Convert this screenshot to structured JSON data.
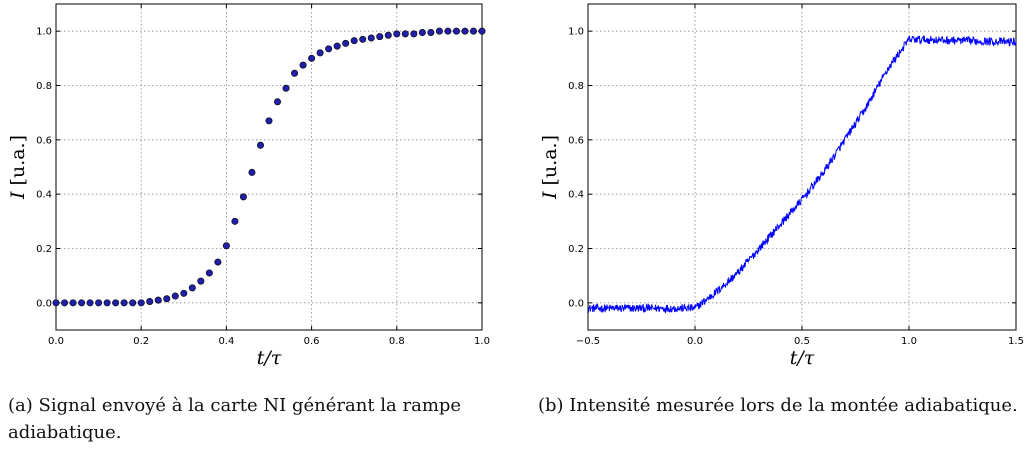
{
  "chart_data": [
    {
      "type": "scatter",
      "title": "",
      "xlabel": "t/τ",
      "ylabel": "I [u.a.]",
      "xlim": [
        0.0,
        1.0
      ],
      "ylim": [
        -0.1,
        1.1
      ],
      "xticks": [
        "0.0",
        "0.2",
        "0.4",
        "0.6",
        "0.8",
        "1.0"
      ],
      "yticks": [
        "0.0",
        "0.2",
        "0.4",
        "0.6",
        "0.8",
        "1.0"
      ],
      "grid": true,
      "marker_color": "#1f1fa8",
      "x": [
        0.0,
        0.02,
        0.04,
        0.06,
        0.08,
        0.1,
        0.12,
        0.14,
        0.16,
        0.18,
        0.2,
        0.22,
        0.24,
        0.26,
        0.28,
        0.3,
        0.32,
        0.34,
        0.36,
        0.38,
        0.4,
        0.42,
        0.44,
        0.46,
        0.48,
        0.5,
        0.52,
        0.54,
        0.56,
        0.58,
        0.6,
        0.62,
        0.64,
        0.66,
        0.68,
        0.7,
        0.72,
        0.74,
        0.76,
        0.78,
        0.8,
        0.82,
        0.84,
        0.86,
        0.88,
        0.9,
        0.92,
        0.94,
        0.96,
        0.98,
        1.0
      ],
      "y": [
        0.0,
        0.0,
        0.0,
        0.0,
        0.0,
        0.0,
        0.0,
        0.0,
        0.0,
        0.0,
        0.0,
        0.005,
        0.01,
        0.015,
        0.025,
        0.035,
        0.055,
        0.08,
        0.11,
        0.15,
        0.21,
        0.3,
        0.39,
        0.48,
        0.58,
        0.67,
        0.74,
        0.79,
        0.845,
        0.875,
        0.9,
        0.92,
        0.935,
        0.945,
        0.955,
        0.965,
        0.97,
        0.975,
        0.98,
        0.985,
        0.99,
        0.99,
        0.99,
        0.995,
        0.995,
        1.0,
        1.0,
        1.0,
        1.0,
        1.0,
        1.0
      ],
      "caption": "(a) Signal envoyé à la carte NI générant la rampe adiabatique."
    },
    {
      "type": "line",
      "title": "",
      "xlabel": "t/τ",
      "ylabel": "I [u.a.]",
      "xlim": [
        -0.5,
        1.5
      ],
      "ylim": [
        -0.1,
        1.1
      ],
      "xticks": [
        "−0.5",
        "0.0",
        "0.5",
        "1.0",
        "1.5"
      ],
      "yticks": [
        "0.0",
        "0.2",
        "0.4",
        "0.6",
        "0.8",
        "1.0"
      ],
      "grid": true,
      "line_color": "#0000ff",
      "x": [
        -0.5,
        0.0,
        0.1,
        0.2,
        0.3,
        0.4,
        0.5,
        0.6,
        0.7,
        0.8,
        0.9,
        1.0,
        1.5
      ],
      "y": [
        -0.02,
        -0.02,
        0.04,
        0.11,
        0.2,
        0.29,
        0.38,
        0.48,
        0.6,
        0.72,
        0.86,
        0.97,
        0.96
      ],
      "caption": "(b) Intensité mesurée lors de la montée adiabatique."
    }
  ]
}
